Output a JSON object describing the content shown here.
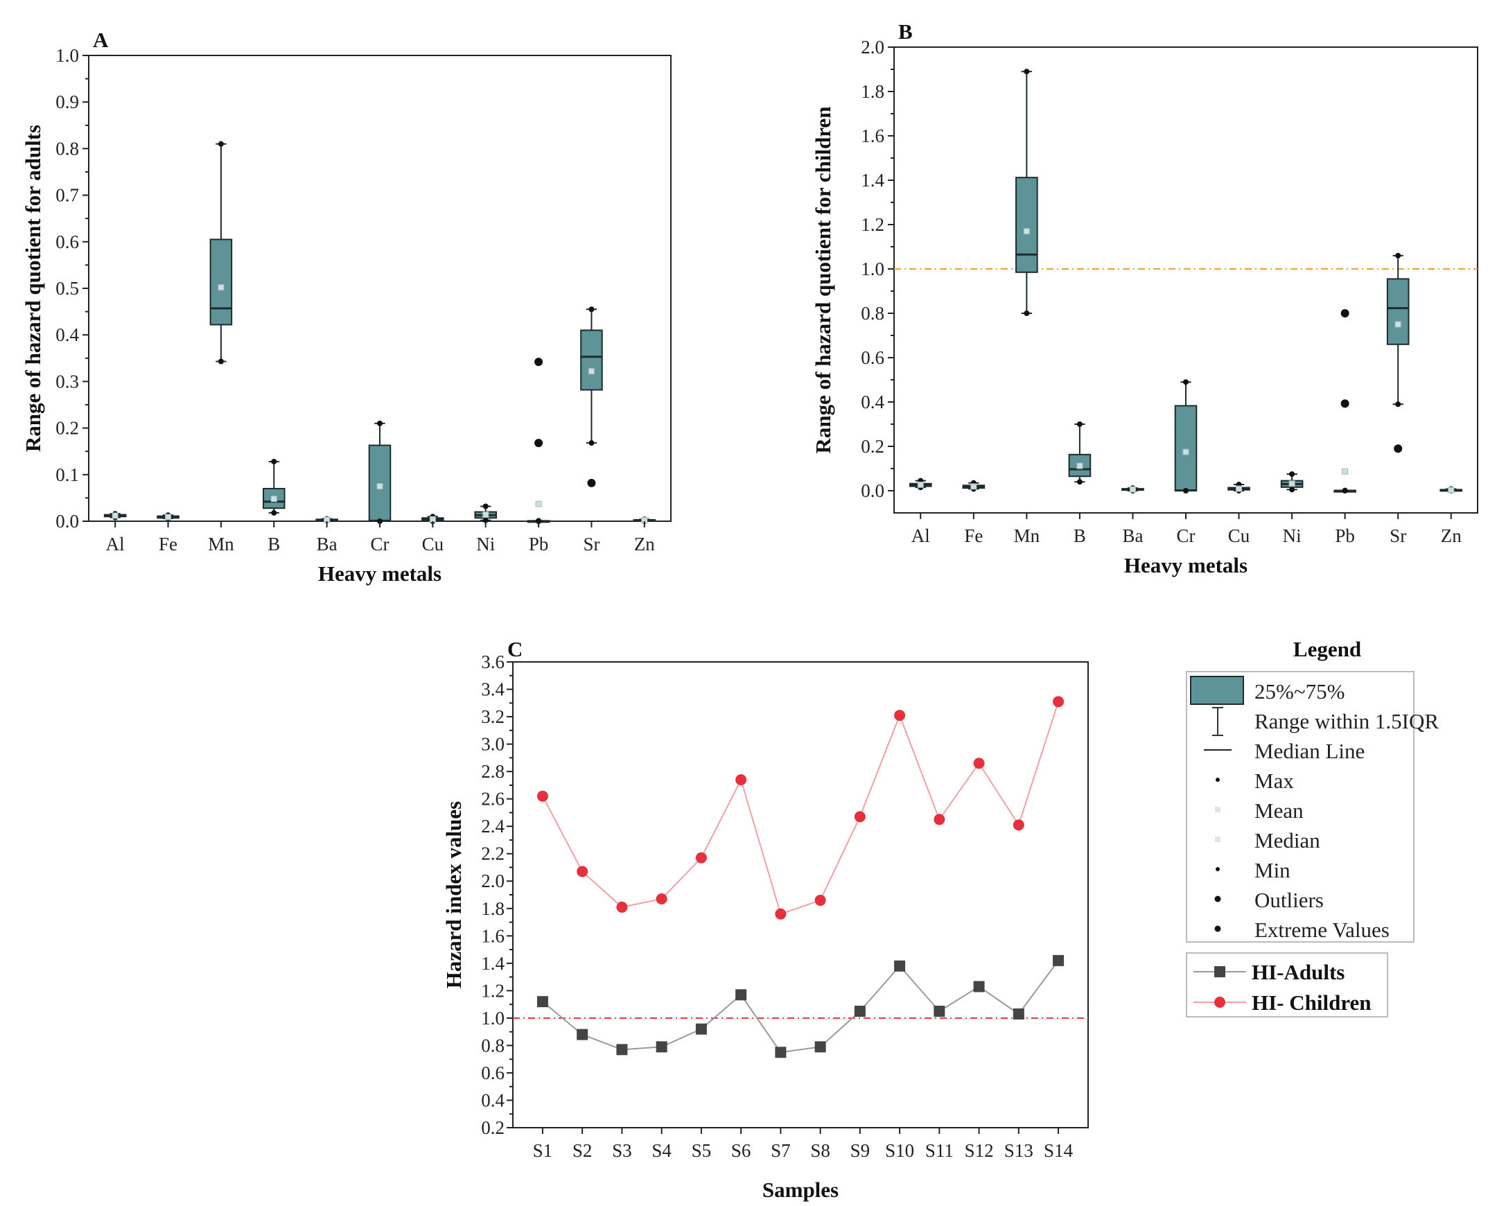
{
  "colors": {
    "box_fill": "#5e9497",
    "box_stroke": "#1d2b2c",
    "adults": "#444444",
    "adults_line": "#9a9a9a",
    "children": "#e8303c",
    "children_line": "#f2a0a6",
    "threshold_B": "#f0a030",
    "threshold_C": "#e8303c"
  },
  "chart_data": [
    {
      "id": "A",
      "panel_label": "A",
      "type": "box",
      "xlabel": "Heavy metals",
      "ylabel": "Range of hazard quotient for adults",
      "ylim": [
        0.0,
        1.0
      ],
      "yticks": [
        "0.0",
        "0.1",
        "0.2",
        "0.3",
        "0.4",
        "0.5",
        "0.6",
        "0.7",
        "0.8",
        "0.9",
        "1.0"
      ],
      "categories": [
        "Al",
        "Fe",
        "Mn",
        "B",
        "Ba",
        "Cr",
        "Cu",
        "Ni",
        "Pb",
        "Sr",
        "Zn"
      ],
      "boxes": [
        {
          "q1": 0.01,
          "median": 0.012,
          "q3": 0.014,
          "whisker_low": 0.008,
          "whisker_high": 0.016,
          "mean": 0.012,
          "outliers": []
        },
        {
          "q1": 0.007,
          "median": 0.009,
          "q3": 0.011,
          "whisker_low": 0.006,
          "whisker_high": 0.013,
          "mean": 0.009,
          "outliers": []
        },
        {
          "q1": 0.422,
          "median": 0.457,
          "q3": 0.605,
          "whisker_low": 0.343,
          "whisker_high": 0.81,
          "mean": 0.502,
          "outliers": []
        },
        {
          "q1": 0.028,
          "median": 0.042,
          "q3": 0.07,
          "whisker_low": 0.018,
          "whisker_high": 0.128,
          "mean": 0.048,
          "outliers": []
        },
        {
          "q1": 0.002,
          "median": 0.003,
          "q3": 0.004,
          "whisker_low": 0.001,
          "whisker_high": 0.005,
          "mean": 0.003,
          "outliers": []
        },
        {
          "q1": 0.0,
          "median": 0.001,
          "q3": 0.163,
          "whisker_low": 0.0,
          "whisker_high": 0.21,
          "mean": 0.075,
          "outliers": []
        },
        {
          "q1": 0.002,
          "median": 0.004,
          "q3": 0.007,
          "whisker_low": 0.0,
          "whisker_high": 0.01,
          "mean": 0.004,
          "outliers": []
        },
        {
          "q1": 0.007,
          "median": 0.013,
          "q3": 0.02,
          "whisker_low": 0.002,
          "whisker_high": 0.032,
          "mean": 0.014,
          "outliers": []
        },
        {
          "q1": 0.0,
          "median": 0.0,
          "q3": 0.001,
          "whisker_low": 0.0,
          "whisker_high": 0.001,
          "mean": 0.037,
          "outliers": [
            0.168,
            0.342
          ]
        },
        {
          "q1": 0.282,
          "median": 0.353,
          "q3": 0.41,
          "whisker_low": 0.168,
          "whisker_high": 0.455,
          "mean": 0.322,
          "outliers": [
            0.082
          ]
        },
        {
          "q1": 0.001,
          "median": 0.002,
          "q3": 0.003,
          "whisker_low": 0.0,
          "whisker_high": 0.004,
          "mean": 0.002,
          "outliers": []
        }
      ]
    },
    {
      "id": "B",
      "panel_label": "B",
      "type": "box",
      "xlabel": "Heavy metals",
      "ylabel": "Range of hazard quotient for children",
      "ylim": [
        -0.1,
        2.0
      ],
      "yticks": [
        "0.0",
        "0.2",
        "0.4",
        "0.6",
        "0.8",
        "1.0",
        "1.2",
        "1.4",
        "1.6",
        "1.8",
        "2.0"
      ],
      "reference_line": 1.0,
      "categories": [
        "Al",
        "Fe",
        "Mn",
        "B",
        "Ba",
        "Cr",
        "Cu",
        "Ni",
        "Pb",
        "Sr",
        "Zn"
      ],
      "boxes": [
        {
          "q1": 0.02,
          "median": 0.026,
          "q3": 0.032,
          "whisker_low": 0.015,
          "whisker_high": 0.045,
          "mean": 0.027,
          "outliers": []
        },
        {
          "q1": 0.012,
          "median": 0.018,
          "q3": 0.024,
          "whisker_low": 0.008,
          "whisker_high": 0.035,
          "mean": 0.019,
          "outliers": []
        },
        {
          "q1": 0.985,
          "median": 1.065,
          "q3": 1.412,
          "whisker_low": 0.8,
          "whisker_high": 1.89,
          "mean": 1.17,
          "outliers": []
        },
        {
          "q1": 0.065,
          "median": 0.097,
          "q3": 0.163,
          "whisker_low": 0.04,
          "whisker_high": 0.3,
          "mean": 0.112,
          "outliers": []
        },
        {
          "q1": 0.003,
          "median": 0.006,
          "q3": 0.009,
          "whisker_low": 0.0,
          "whisker_high": 0.012,
          "mean": 0.006,
          "outliers": []
        },
        {
          "q1": 0.0,
          "median": 0.001,
          "q3": 0.383,
          "whisker_low": 0.0,
          "whisker_high": 0.49,
          "mean": 0.175,
          "outliers": []
        },
        {
          "q1": 0.004,
          "median": 0.008,
          "q3": 0.014,
          "whisker_low": 0.0,
          "whisker_high": 0.028,
          "mean": 0.009,
          "outliers": []
        },
        {
          "q1": 0.016,
          "median": 0.03,
          "q3": 0.045,
          "whisker_low": 0.005,
          "whisker_high": 0.075,
          "mean": 0.032,
          "outliers": []
        },
        {
          "q1": 0.0,
          "median": 0.0,
          "q3": 0.001,
          "whisker_low": 0.0,
          "whisker_high": 0.001,
          "mean": 0.087,
          "outliers": [
            0.393,
            0.8
          ]
        },
        {
          "q1": 0.66,
          "median": 0.823,
          "q3": 0.955,
          "whisker_low": 0.39,
          "whisker_high": 1.06,
          "mean": 0.75,
          "outliers": [
            0.19
          ]
        },
        {
          "q1": 0.001,
          "median": 0.003,
          "q3": 0.005,
          "whisker_low": 0.0,
          "whisker_high": 0.008,
          "mean": 0.003,
          "outliers": []
        }
      ]
    },
    {
      "id": "C",
      "panel_label": "C",
      "type": "line",
      "xlabel": "Samples",
      "ylabel": "Hazard index values",
      "ylim": [
        0.2,
        3.6
      ],
      "yticks": [
        "0.2",
        "0.4",
        "0.6",
        "0.8",
        "1.0",
        "1.2",
        "1.4",
        "1.6",
        "1.8",
        "2.0",
        "2.2",
        "2.4",
        "2.6",
        "2.8",
        "3.0",
        "3.2",
        "3.4",
        "3.6"
      ],
      "reference_line": 1.0,
      "categories": [
        "S1",
        "S2",
        "S3",
        "S4",
        "S5",
        "S6",
        "S7",
        "S8",
        "S9",
        "S10",
        "S11",
        "S12",
        "S13",
        "S14"
      ],
      "series": [
        {
          "name": "HI-Adults",
          "marker": "square",
          "values": [
            1.12,
            0.88,
            0.77,
            0.79,
            0.92,
            1.17,
            0.75,
            0.79,
            1.05,
            1.38,
            1.05,
            1.23,
            1.03,
            1.42
          ]
        },
        {
          "name": "HI- Children",
          "marker": "circle",
          "values": [
            2.62,
            2.07,
            1.81,
            1.87,
            2.17,
            2.74,
            1.76,
            1.86,
            2.47,
            3.21,
            2.45,
            2.86,
            2.41,
            3.31
          ]
        }
      ]
    }
  ],
  "legend": {
    "title": "Legend",
    "box_items": [
      "25%~75%",
      "Range within 1.5IQR",
      "Median Line",
      "Max",
      "Mean",
      "Median",
      "Min",
      "Outliers",
      "Extreme Values"
    ],
    "series_items": [
      "HI-Adults",
      "HI- Children"
    ]
  }
}
